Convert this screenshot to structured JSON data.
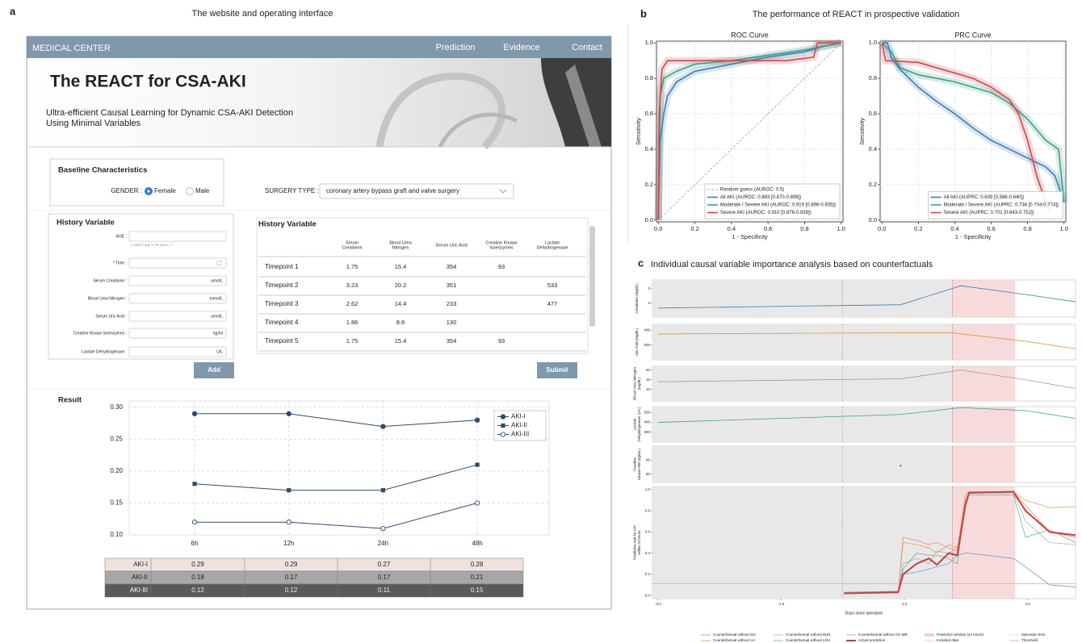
{
  "panel_a": {
    "label": "a",
    "title": "The website and operating interface",
    "nav": {
      "brand": "MEDICAL CENTER",
      "links": [
        "Prediction",
        "Evidence",
        "Contact"
      ]
    },
    "header": {
      "title": "The REACT for CSA-AKI",
      "subtitle_lines": [
        "Ultra-efficient Causal Learning for Dynamic CSA-AKI Detection",
        "Using Minimal Variables"
      ]
    },
    "baseline": {
      "title": "Baseline Characteristics",
      "gender_label": "GENDER :",
      "options": [
        "Female",
        "Male"
      ],
      "selected_index": 0,
      "surgery_label": "SURGERY TYPE :",
      "surgery_value": "coronary artery bypass graft and valve surgery"
    },
    "form": {
      "title": "History Variable",
      "fields": [
        {
          "label": "AGE :",
          "hint": "( Adult ( age ≥ 18 years ) )"
        },
        {
          "label": "* Time :",
          "icon": "calendar"
        },
        {
          "label": "Serum Creatinine :",
          "unit": "umol/L"
        },
        {
          "label": "Blood Urea Nitrogen :",
          "unit": "mmol/L"
        },
        {
          "label": "Serum Uric Acid :",
          "unit": "umol/L"
        },
        {
          "label": "Creatine Kinase Isoenzymes :",
          "unit": "ng/ml"
        },
        {
          "label": "Lactate Dehydrogenase :",
          "unit": "U/L"
        }
      ],
      "add_button": "Add"
    },
    "history_table": {
      "title": "History Variable",
      "columns": [
        [
          "Serum",
          "Creatinine"
        ],
        [
          "Blood Urea",
          "Nitrogen"
        ],
        [
          "Serum Uric Acid"
        ],
        [
          "Creatine Kinase",
          "Isoenzymes"
        ],
        [
          "Lactate",
          "Dehydrogenase"
        ]
      ],
      "rows": [
        {
          "label": "Timepoint 1",
          "cells": [
            1.75,
            15.4,
            354,
            93,
            null
          ]
        },
        {
          "label": "Timepoint 2",
          "cells": [
            3.23,
            20.2,
            351,
            null,
            533
          ]
        },
        {
          "label": "Timepoint 3",
          "cells": [
            2.62,
            14.4,
            233,
            null,
            477
          ]
        },
        {
          "label": "Timepoint 4",
          "cells": [
            1.86,
            8.8,
            130,
            null,
            null
          ]
        },
        {
          "label": "Timepoint 5",
          "cells": [
            1.75,
            15.4,
            354,
            93,
            null
          ]
        }
      ]
    },
    "submit_button": "Submit",
    "result_title": "Result"
  },
  "panel_b": {
    "label": "b",
    "title": "The performance of REACT in prospective validation"
  },
  "panel_c": {
    "label": "c",
    "title": "Individual causal variable importance analysis based on counterfactuals"
  },
  "chart_data": [
    {
      "type": "category-line",
      "categories": [
        "6h",
        "12h",
        "24h",
        "48h"
      ],
      "ylim": [
        0.1,
        0.31
      ],
      "yticks": [
        {
          "value": 0.3,
          "label": "0.30"
        },
        0.25,
        {
          "value": 0.2,
          "label": "0.20"
        },
        0.15,
        {
          "value": 0.1,
          "label": "0.10"
        }
      ],
      "grid": true,
      "legend": "upper right",
      "series": [
        {
          "name": "AKI-I",
          "color": "#2e4b6d",
          "marker": "circle",
          "row_color": "#efe2dc",
          "values": [
            0.29,
            0.29,
            0.27,
            0.28
          ]
        },
        {
          "name": "AKI-II",
          "color": "#2e4b6d",
          "marker": "square",
          "row_color": "#a7a7a7",
          "values": [
            0.18,
            0.17,
            0.17,
            0.21
          ]
        },
        {
          "name": "AKI-III",
          "color": "#2e4b6d",
          "marker": "open-circle",
          "row_color": "#5a5a5a",
          "values": [
            0.12,
            0.12,
            0.11,
            0.15
          ]
        }
      ]
    },
    {
      "type": "line",
      "title": "ROC Curve",
      "xlabel": "1 - Specificity",
      "ylabel": "Sensitivity",
      "xlim": [
        -0.01,
        1.01
      ],
      "ylim": [
        -0.01,
        1.01
      ],
      "xticks": [
        {
          "value": 0,
          "label": "0.0"
        },
        0.2,
        0.4,
        0.6,
        0.8,
        {
          "value": 1,
          "label": "1.0"
        }
      ],
      "yticks": [
        {
          "value": 0,
          "label": "0.0"
        },
        0.2,
        0.4,
        0.6,
        0.8,
        {
          "value": 1,
          "label": "1.0"
        }
      ],
      "grid": true,
      "legend": "lower right",
      "series": [
        {
          "name": "Random guess (AUROC: 0.5)",
          "color": "#a0a0a0",
          "dash": true,
          "x": [
            0,
            1
          ],
          "values": [
            0,
            1
          ]
        },
        {
          "name": "All AKI (AUROC: 0.883 [0.870-0.898])",
          "color": "#3a7fb5",
          "band": true,
          "x": [
            0,
            0.01,
            0.03,
            0.05,
            0.1,
            0.2,
            0.4,
            0.6,
            0.8,
            0.9,
            1
          ],
          "values": [
            0,
            0.45,
            0.6,
            0.7,
            0.78,
            0.84,
            0.88,
            0.92,
            0.95,
            0.98,
            1
          ]
        },
        {
          "name": "Moderate / Severe AKI (AUROC: 0.919 [0.898-0.935])",
          "color": "#3c9e8c",
          "band": true,
          "x": [
            0,
            0.01,
            0.03,
            0.1,
            0.2,
            0.4,
            0.6,
            0.8,
            0.9,
            1
          ],
          "values": [
            0,
            0.7,
            0.8,
            0.84,
            0.88,
            0.9,
            0.93,
            0.96,
            0.98,
            1
          ]
        },
        {
          "name": "Severe AKI (AUROC: 0.910 [0.876-0.939])",
          "color": "#d0484a",
          "band": true,
          "x": [
            0,
            0.005,
            0.02,
            0.05,
            0.3,
            0.5,
            0.7,
            0.85,
            0.87,
            1
          ],
          "values": [
            0,
            0.6,
            0.85,
            0.9,
            0.9,
            0.9,
            0.9,
            0.92,
            1,
            1
          ]
        }
      ]
    },
    {
      "type": "line",
      "title": "PRC Curve",
      "xlabel": "1 - Specificity",
      "ylabel": "Sensitivity",
      "xlim": [
        -0.01,
        1.01
      ],
      "ylim": [
        -0.01,
        1.01
      ],
      "xticks": [
        {
          "value": 0,
          "label": "0.0"
        },
        0.2,
        0.4,
        0.6,
        0.8,
        {
          "value": 1,
          "label": "1.0"
        }
      ],
      "yticks": [
        {
          "value": 0,
          "label": "0.0"
        },
        0.2,
        0.4,
        0.6,
        0.8,
        {
          "value": 1,
          "label": "1.0"
        }
      ],
      "grid": true,
      "legend": "lower right",
      "series": [
        {
          "name": "All AKI (AUPRC: 0.609 [0.586-0.640])",
          "color": "#3a7fb5",
          "band": true,
          "x": [
            0,
            0.03,
            0.05,
            0.1,
            0.2,
            0.3,
            0.4,
            0.5,
            0.6,
            0.7,
            0.8,
            0.9,
            0.95,
            1
          ],
          "values": [
            1,
            1,
            0.92,
            0.85,
            0.75,
            0.67,
            0.6,
            0.52,
            0.45,
            0.4,
            0.35,
            0.3,
            0.25,
            0.1
          ]
        },
        {
          "name": "Moderate / Severe AKI (AUPRC: 0.738 [0.704-0.774])",
          "color": "#3c9e8c",
          "band": true,
          "x": [
            0,
            0.05,
            0.1,
            0.2,
            0.4,
            0.6,
            0.7,
            0.8,
            0.9,
            0.97,
            1
          ],
          "values": [
            1,
            0.95,
            0.86,
            0.82,
            0.78,
            0.72,
            0.66,
            0.57,
            0.45,
            0.4,
            0.1
          ]
        },
        {
          "name": "Severe AKI (AUPRC: 0.701 [0.643-0.752])",
          "color": "#d0484a",
          "band": true,
          "x": [
            0,
            0.02,
            0.2,
            0.3,
            0.5,
            0.6,
            0.7,
            0.75,
            0.8,
            0.85,
            0.9,
            0.92
          ],
          "values": [
            1,
            0.9,
            0.89,
            0.86,
            0.8,
            0.75,
            0.68,
            0.6,
            0.45,
            0.25,
            0.1,
            0.05
          ]
        }
      ]
    },
    {
      "type": "line",
      "ylabel": [
        "Creatinine (mg/dL)"
      ],
      "xlim": [
        -3.09,
        3.78
      ],
      "ylim": [
        1.05,
        3.6
      ],
      "yticks": [
        2,
        3
      ],
      "shade": [
        -3.09,
        1.78
      ],
      "window": [
        1.78,
        2.8
      ],
      "operation": 0,
      "included": 1.78,
      "series": [
        {
          "color": "#3a7fb5",
          "x": [
            -3,
            0.94,
            1.92,
            2.97,
            3.78
          ],
          "values": [
            1.67,
            1.9,
            3.2,
            2.6,
            2.1
          ]
        }
      ]
    },
    {
      "type": "line",
      "ylabel": [
        "Uric Acid (mg/dL)"
      ],
      "xlim": [
        -3.09,
        3.78
      ],
      "ylim": [
        0,
        480
      ],
      "yticks": [
        200,
        400
      ],
      "shade": [
        -3.09,
        1.78
      ],
      "window": [
        1.78,
        2.8
      ],
      "operation": 0,
      "included": 1.78,
      "series": [
        {
          "color": "#e0953a",
          "x": [
            -3,
            0.94,
            1.78,
            2.97,
            3.78
          ],
          "values": [
            350,
            365,
            365,
            250,
            150
          ]
        }
      ]
    },
    {
      "type": "line",
      "ylabel": [
        "Blood Urea Nitrogen",
        "(mg/dL)"
      ],
      "xlim": [
        -3.09,
        3.78
      ],
      "ylim": [
        4,
        22
      ],
      "yticks": [
        10,
        15,
        20
      ],
      "shade": [
        -3.09,
        1.78
      ],
      "window": [
        1.78,
        2.8
      ],
      "operation": 0,
      "included": 1.78,
      "series": [
        {
          "color": "#999999",
          "x": [
            -3,
            0.94,
            1.92,
            2.97,
            3.78
          ],
          "values": [
            14,
            15.5,
            20,
            15,
            10.5
          ]
        }
      ]
    },
    {
      "type": "line",
      "ylabel": [
        "Lactate",
        "Dehydrogenase (U/L)"
      ],
      "xlim": [
        -3.09,
        3.78
      ],
      "ylim": [
        200,
        560
      ],
      "yticks": [
        300,
        400,
        500
      ],
      "shade": [
        -3.09,
        1.78
      ],
      "window": [
        1.78,
        2.8
      ],
      "operation": 0,
      "included": 1.78,
      "series": [
        {
          "color": "#3a9e8a",
          "x": [
            -3,
            0.94,
            1.92,
            2.97,
            3.78
          ],
          "values": [
            400,
            480,
            550,
            520,
            440
          ]
        }
      ]
    },
    {
      "type": "line",
      "ylabel": [
        "Creatine",
        "Kinase-MB (ng/mL)"
      ],
      "xlim": [
        -3.09,
        3.78
      ],
      "ylim": [
        77,
        90
      ],
      "yticks": [
        80,
        85
      ],
      "shade": [
        -3.09,
        1.78
      ],
      "window": [
        1.78,
        2.8
      ],
      "operation": 0,
      "included": 1.78,
      "series": [
        {
          "color": "#d0484a",
          "x": [
            0.94
          ],
          "values": [
            83
          ]
        }
      ]
    },
    {
      "type": "line",
      "ylabel": [
        "Predictive risk for AKI",
        "within 24 hours"
      ],
      "xlabel": "Days since operation",
      "xlim": [
        -3.09,
        3.78
      ],
      "ylim": [
        -0.03,
        1.03
      ],
      "xticks": [
        {
          "value": -3,
          "label": "-3.0"
        },
        {
          "value": -1,
          "label": "-1.0"
        },
        {
          "value": 1,
          "label": "1.0"
        },
        {
          "value": 3,
          "label": "3.0"
        }
      ],
      "yticks": [
        {
          "value": 0,
          "label": "0.0"
        },
        0.2,
        0.4,
        0.6,
        0.8,
        {
          "value": 1,
          "label": "1.0"
        }
      ],
      "shade": [
        -3.09,
        1.78
      ],
      "window": [
        1.78,
        2.8
      ],
      "operation": 0,
      "included": 1.78,
      "window_label": "Prediction window (24 hours)",
      "operation_label": "Operation time",
      "included_label": "Included data",
      "threshold": {
        "name": "Threshold",
        "value": 0.11,
        "color": "#f0a0a0"
      },
      "x": [
        0.02,
        0.9,
        0.98,
        1.2,
        1.4,
        1.53,
        1.72,
        1.86,
        1.99,
        2.05,
        2.77,
        2.97,
        3.36,
        3.78
      ],
      "series": [
        {
          "name": "Counterfactual without SCr",
          "color": "#6a9fd4",
          "values": [
            0.03,
            0.04,
            0.2,
            0.22,
            0.25,
            0.27,
            0.3,
            0.38,
            0.4,
            0.4,
            0.35,
            0.27,
            0.1,
            0.08
          ]
        },
        {
          "name": "Counterfactual without UA",
          "color": "#e8a04a",
          "values": [
            0.02,
            0.03,
            0.5,
            0.48,
            0.45,
            0.4,
            0.48,
            0.45,
            0.9,
            0.98,
            0.98,
            0.9,
            0.83,
            0.84
          ]
        },
        {
          "name": "Counterfactual without BUN",
          "color": "#b0b0b0",
          "values": [
            0.02,
            0.03,
            0.3,
            0.35,
            0.3,
            0.42,
            0.4,
            0.45,
            0.9,
            0.97,
            0.97,
            0.7,
            0.5,
            0.48
          ]
        },
        {
          "name": "Counterfactual without LDH",
          "color": "#5fb3a0",
          "values": [
            0.02,
            0.03,
            0.25,
            0.4,
            0.38,
            0.38,
            0.35,
            0.3,
            0.88,
            0.95,
            0.95,
            0.55,
            0.62,
            0.5
          ]
        },
        {
          "name": "Counterfactual without CK-MB",
          "color": "#e88a86",
          "values": [
            0.02,
            0.03,
            0.55,
            0.52,
            0.48,
            0.5,
            0.45,
            0.42,
            0.95,
            0.98,
            0.98,
            0.85,
            0.6,
            0.55
          ]
        },
        {
          "name": "Actual prediction",
          "color": "#c8403c",
          "width": 2,
          "values": [
            0.02,
            0.03,
            0.2,
            0.3,
            0.35,
            0.29,
            0.4,
            0.38,
            0.85,
            0.97,
            0.98,
            0.8,
            0.6,
            0.57
          ]
        }
      ]
    }
  ]
}
